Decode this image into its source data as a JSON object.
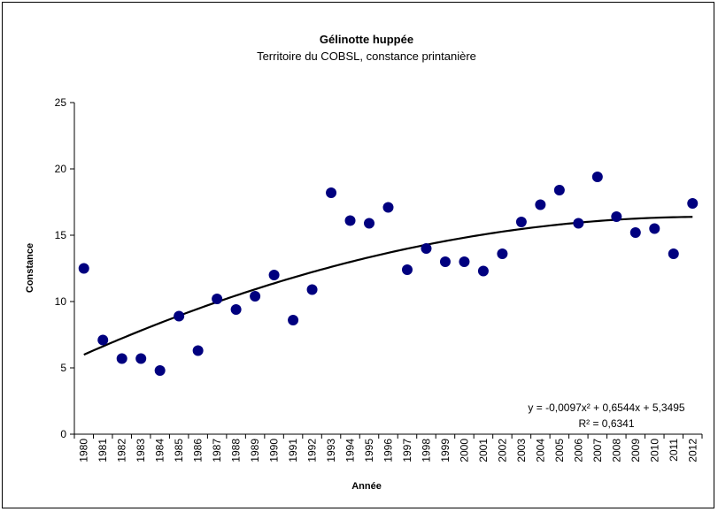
{
  "chart_data": {
    "type": "scatter",
    "title": "Gélinotte huppée",
    "subtitle": "Territoire du COBSL, constance printanière",
    "xlabel": "Année",
    "ylabel": "Constance",
    "ylim": [
      0,
      25
    ],
    "yticks": [
      "0",
      "5",
      "10",
      "15",
      "20",
      "25"
    ],
    "x": [
      "1980",
      "1981",
      "1982",
      "1983",
      "1984",
      "1985",
      "1986",
      "1987",
      "1988",
      "1989",
      "1990",
      "1991",
      "1992",
      "1993",
      "1994",
      "1995",
      "1996",
      "1997",
      "1998",
      "1999",
      "2000",
      "2001",
      "2002",
      "2003",
      "2004",
      "2005",
      "2006",
      "2007",
      "2008",
      "2009",
      "2010",
      "2011",
      "2012"
    ],
    "y": [
      12.5,
      7.1,
      5.7,
      5.7,
      4.8,
      8.9,
      6.3,
      10.2,
      9.4,
      10.4,
      12.0,
      8.6,
      10.9,
      18.2,
      16.1,
      15.9,
      17.1,
      12.4,
      14.0,
      13.0,
      13.0,
      12.3,
      13.6,
      16.0,
      17.3,
      18.4,
      15.9,
      19.4,
      16.4,
      15.2,
      15.5,
      13.6,
      17.4
    ],
    "marker_color": "#00007F",
    "trendline": {
      "type": "polynomial",
      "order": 2,
      "a": -0.0097,
      "b": 0.6544,
      "c": 5.3495,
      "color": "#000000",
      "equation": "y = -0,0097x² + 0,6544x + 5,3495",
      "r2": "R² = 0,6341"
    },
    "grid": false,
    "legend": "none"
  }
}
